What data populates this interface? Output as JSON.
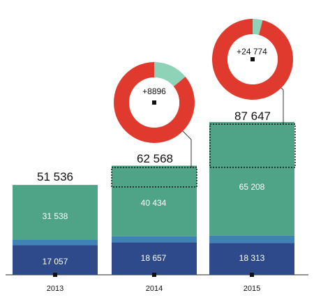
{
  "chart_data": {
    "type": "bar",
    "stacked": true,
    "categories": [
      "2013",
      "2014",
      "2015"
    ],
    "series": [
      {
        "values": [
          17057,
          18657,
          18313
        ],
        "color": "#2e4a8a"
      },
      {
        "values": [
          2941,
          3477,
          4126
        ],
        "color": "#3f82b5"
      },
      {
        "values": [
          31538,
          40434,
          65208
        ],
        "color": "#4fa386"
      }
    ],
    "segment_labels": {
      "bottom": [
        "17 057",
        "18 657",
        "18 313"
      ],
      "top": [
        "31 538",
        "40 434",
        "65 208"
      ]
    },
    "totals": [
      51536,
      62568,
      87647
    ],
    "total_labels": [
      "51 536",
      "62 568",
      "87 647"
    ],
    "increase": [
      null,
      8896,
      24774
    ],
    "increase_labels": [
      "",
      "+8896",
      "+24 774"
    ],
    "donut_share": [
      null,
      0.14,
      0.04
    ],
    "donut_colors": {
      "main": "#e03a2e",
      "share": "#8ed3b8"
    },
    "ylim": [
      0,
      88000
    ],
    "grid": false,
    "xlabel": "",
    "ylabel": ""
  }
}
